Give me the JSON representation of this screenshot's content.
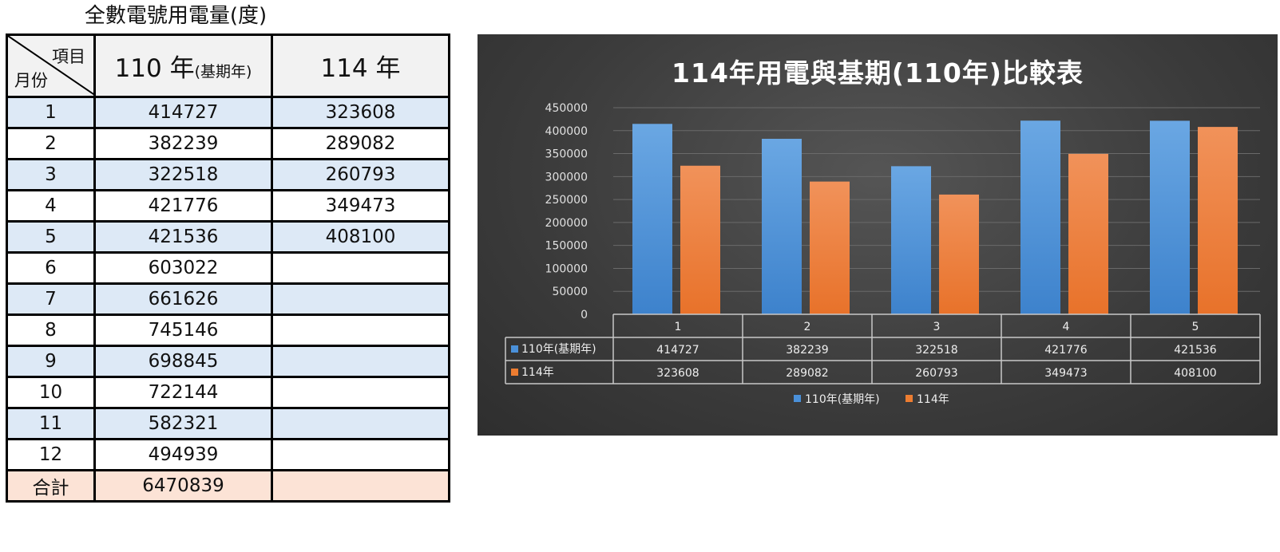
{
  "table": {
    "title": "全數電號用電量(度)",
    "header": {
      "item_label": "項目",
      "month_label": "月份",
      "col1_main": "110 年",
      "col1_sub": "(基期年)",
      "col2": "114 年"
    },
    "rows": [
      {
        "month": "1",
        "base": "414727",
        "cur": "323608"
      },
      {
        "month": "2",
        "base": "382239",
        "cur": "289082"
      },
      {
        "month": "3",
        "base": "322518",
        "cur": "260793"
      },
      {
        "month": "4",
        "base": "421776",
        "cur": "349473"
      },
      {
        "month": "5",
        "base": "421536",
        "cur": "408100"
      },
      {
        "month": "6",
        "base": "603022",
        "cur": ""
      },
      {
        "month": "7",
        "base": "661626",
        "cur": ""
      },
      {
        "month": "8",
        "base": "745146",
        "cur": ""
      },
      {
        "month": "9",
        "base": "698845",
        "cur": ""
      },
      {
        "month": "10",
        "base": "722144",
        "cur": ""
      },
      {
        "month": "11",
        "base": "582321",
        "cur": ""
      },
      {
        "month": "12",
        "base": "494939",
        "cur": ""
      }
    ],
    "total": {
      "label": "合計",
      "base": "6470839",
      "cur": ""
    }
  },
  "chart_data": {
    "type": "bar",
    "title": "114年用電與基期(110年)比較表",
    "categories": [
      "1",
      "2",
      "3",
      "4",
      "5"
    ],
    "series": [
      {
        "name": "110年(基期年)",
        "values": [
          414727,
          382239,
          322518,
          421776,
          421536
        ],
        "color": "#4a90d9"
      },
      {
        "name": "114年",
        "values": [
          323608,
          289082,
          260793,
          349473,
          408100
        ],
        "color": "#ed7d31"
      }
    ],
    "ylim": [
      0,
      450000
    ],
    "yticks": [
      0,
      50000,
      100000,
      150000,
      200000,
      250000,
      300000,
      350000,
      400000,
      450000
    ],
    "grid": true,
    "data_table": true,
    "legend": "bottom"
  }
}
